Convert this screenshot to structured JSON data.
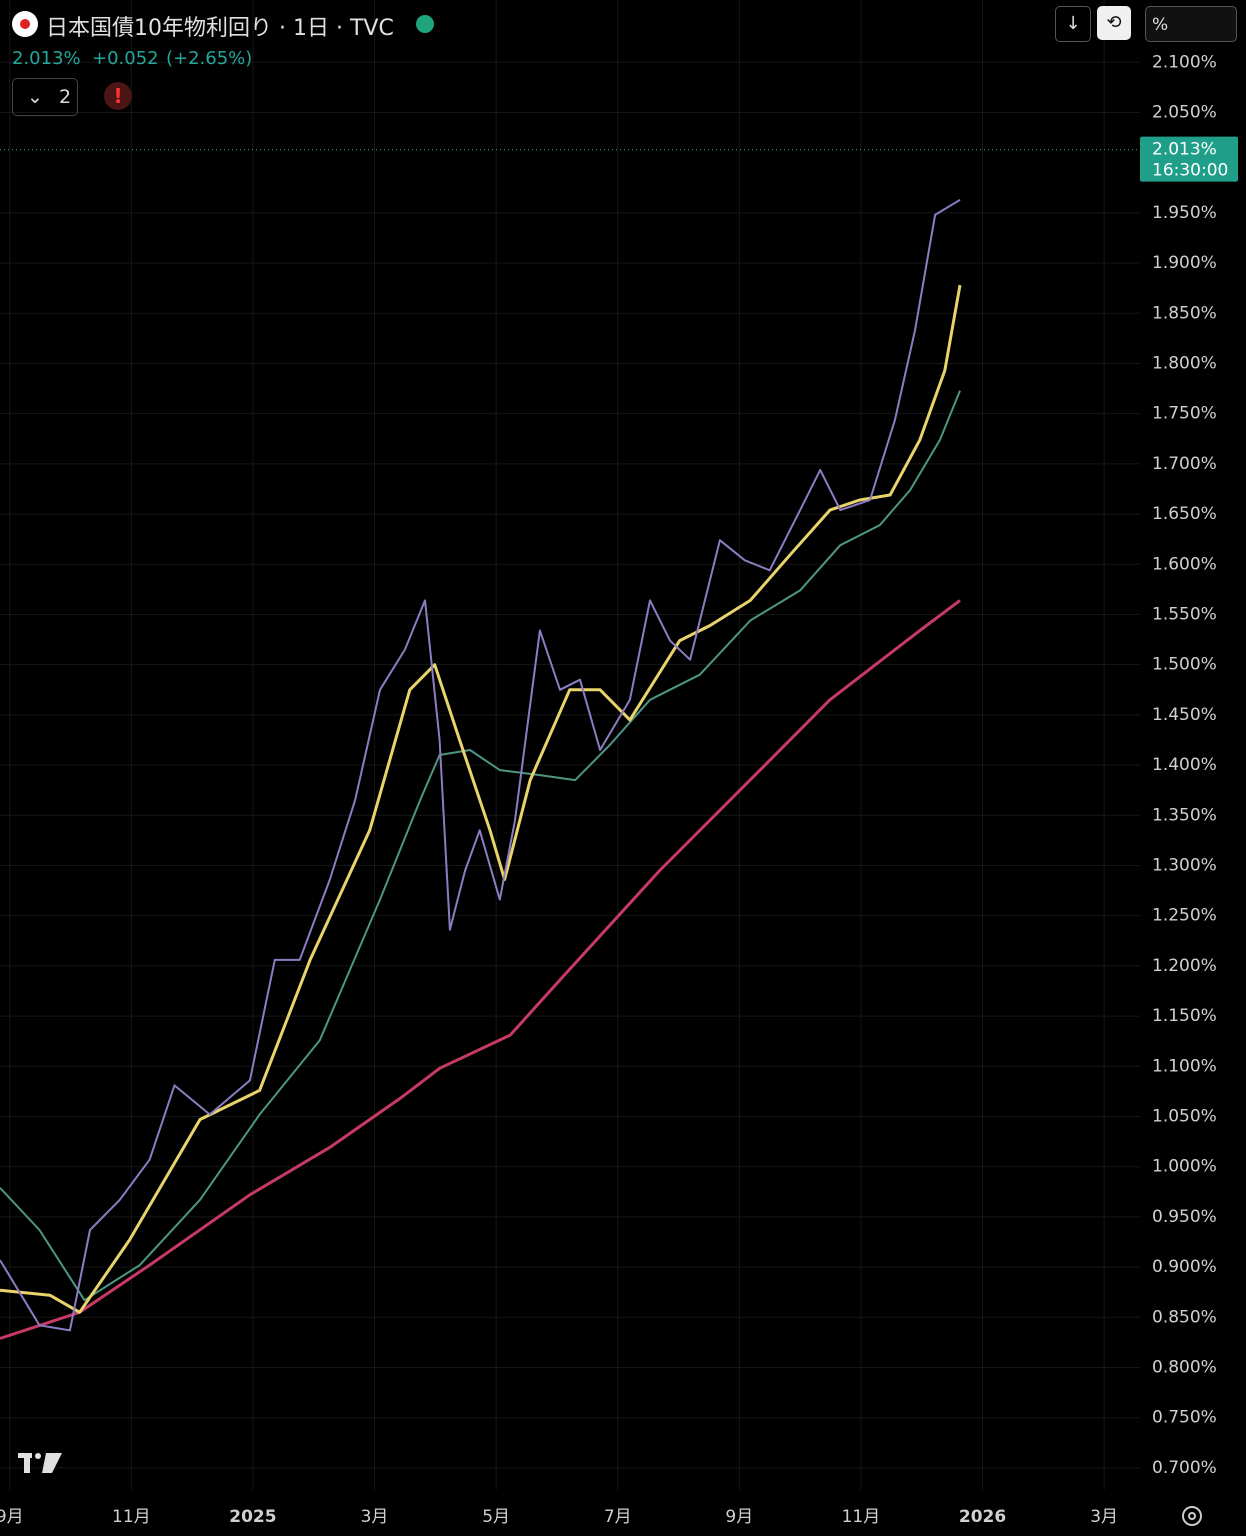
{
  "header": {
    "title": "日本国債10年物利回り · 1日 · TVC",
    "change": "+0.052",
    "change_pct": "(+2.65%)",
    "indicator_count": "2",
    "unit_button": "%"
  },
  "chart_data": {
    "type": "line",
    "last_value": {
      "value": 2.013,
      "label": "2.013%"
    },
    "last_time": "16:30:00",
    "xlim": [
      8.84,
      27.59
    ],
    "xticks": [
      {
        "value": 9,
        "label": "9月"
      },
      {
        "value": 11,
        "label": "11月"
      },
      {
        "value": 13,
        "label": "2025"
      },
      {
        "value": 15,
        "label": "3月"
      },
      {
        "value": 17,
        "label": "5月"
      },
      {
        "value": 19,
        "label": "7月"
      },
      {
        "value": 21,
        "label": "9月"
      },
      {
        "value": 23,
        "label": "11月"
      },
      {
        "value": 25,
        "label": "2026"
      },
      {
        "value": 27,
        "label": "3月"
      }
    ],
    "ylim": [
      0.678,
      2.162
    ],
    "yticks": [
      {
        "value": 0.7,
        "label": "0.700%"
      },
      {
        "value": 0.75,
        "label": "0.750%"
      },
      {
        "value": 0.8,
        "label": "0.800%"
      },
      {
        "value": 0.85,
        "label": "0.850%"
      },
      {
        "value": 0.9,
        "label": "0.900%"
      },
      {
        "value": 0.95,
        "label": "0.950%"
      },
      {
        "value": 1.0,
        "label": "1.000%"
      },
      {
        "value": 1.05,
        "label": "1.050%"
      },
      {
        "value": 1.1,
        "label": "1.100%"
      },
      {
        "value": 1.15,
        "label": "1.150%"
      },
      {
        "value": 1.2,
        "label": "1.200%"
      },
      {
        "value": 1.25,
        "label": "1.250%"
      },
      {
        "value": 1.3,
        "label": "1.300%"
      },
      {
        "value": 1.35,
        "label": "1.350%"
      },
      {
        "value": 1.4,
        "label": "1.400%"
      },
      {
        "value": 1.45,
        "label": "1.450%"
      },
      {
        "value": 1.5,
        "label": "1.500%"
      },
      {
        "value": 1.55,
        "label": "1.550%"
      },
      {
        "value": 1.6,
        "label": "1.600%"
      },
      {
        "value": 1.65,
        "label": "1.650%"
      },
      {
        "value": 1.7,
        "label": "1.700%"
      },
      {
        "value": 1.75,
        "label": "1.750%"
      },
      {
        "value": 1.8,
        "label": "1.800%"
      },
      {
        "value": 1.85,
        "label": "1.850%"
      },
      {
        "value": 1.9,
        "label": "1.900%"
      },
      {
        "value": 1.95,
        "label": "1.950%"
      },
      {
        "value": 2.05,
        "label": "2.050%"
      },
      {
        "value": 2.1,
        "label": "2.100%"
      }
    ],
    "grid": true,
    "series": [
      {
        "color": "#c73a64",
        "width": 3,
        "x": [
          8.84,
          10.15,
          11.3,
          12.95,
          14.26,
          15.42,
          16.07,
          17.23,
          18.05,
          19.69,
          21.34,
          22.49,
          23.97,
          24.63
        ],
        "values": [
          0.829,
          0.855,
          0.902,
          0.972,
          1.019,
          1.068,
          1.098,
          1.131,
          1.186,
          1.295,
          1.395,
          1.465,
          1.534,
          1.564
        ]
      },
      {
        "color": "#4e9684",
        "width": 2,
        "x": [
          8.84,
          9.49,
          10.23,
          11.14,
          12.13,
          13.11,
          14.1,
          15.09,
          15.75,
          16.07,
          16.57,
          17.06,
          17.72,
          18.3,
          18.87,
          19.53,
          20.35,
          21.18,
          22.0,
          22.66,
          23.31,
          23.81,
          24.3,
          24.63
        ],
        "values": [
          0.979,
          0.937,
          0.867,
          0.902,
          0.967,
          1.052,
          1.126,
          1.266,
          1.365,
          1.41,
          1.415,
          1.395,
          1.39,
          1.385,
          1.42,
          1.465,
          1.49,
          1.544,
          1.574,
          1.619,
          1.639,
          1.674,
          1.724,
          1.773
        ]
      },
      {
        "color": "#e9d36b",
        "width": 3,
        "x": [
          8.84,
          9.66,
          10.15,
          10.97,
          12.13,
          13.11,
          13.94,
          14.92,
          15.58,
          15.99,
          16.4,
          16.9,
          17.14,
          17.56,
          18.21,
          18.71,
          19.2,
          20.02,
          20.52,
          21.18,
          21.83,
          22.49,
          22.98,
          23.48,
          23.97,
          24.38,
          24.63
        ],
        "values": [
          0.877,
          0.872,
          0.855,
          0.927,
          1.047,
          1.076,
          1.206,
          1.335,
          1.475,
          1.5,
          1.425,
          1.335,
          1.286,
          1.385,
          1.475,
          1.475,
          1.445,
          1.524,
          1.539,
          1.564,
          1.609,
          1.654,
          1.664,
          1.669,
          1.724,
          1.793,
          1.878
        ]
      },
      {
        "color": "#8e7cc3",
        "width": 2,
        "x": [
          8.84,
          9.49,
          9.99,
          10.32,
          10.81,
          11.3,
          11.71,
          12.29,
          12.95,
          13.36,
          13.77,
          14.26,
          14.68,
          15.09,
          15.5,
          15.83,
          16.07,
          16.24,
          16.49,
          16.73,
          17.06,
          17.31,
          17.72,
          18.05,
          18.38,
          18.71,
          19.2,
          19.53,
          19.86,
          20.19,
          20.68,
          21.09,
          21.5,
          22.0,
          22.33,
          22.66,
          23.15,
          23.56,
          23.89,
          24.22,
          24.63
        ],
        "values": [
          0.907,
          0.842,
          0.837,
          0.937,
          0.967,
          1.007,
          1.081,
          1.052,
          1.086,
          1.206,
          1.206,
          1.285,
          1.365,
          1.475,
          1.515,
          1.564,
          1.425,
          1.236,
          1.295,
          1.335,
          1.266,
          1.345,
          1.534,
          1.475,
          1.485,
          1.415,
          1.465,
          1.564,
          1.524,
          1.505,
          1.624,
          1.604,
          1.594,
          1.654,
          1.694,
          1.654,
          1.664,
          1.744,
          1.833,
          1.948,
          1.963
        ]
      }
    ]
  }
}
